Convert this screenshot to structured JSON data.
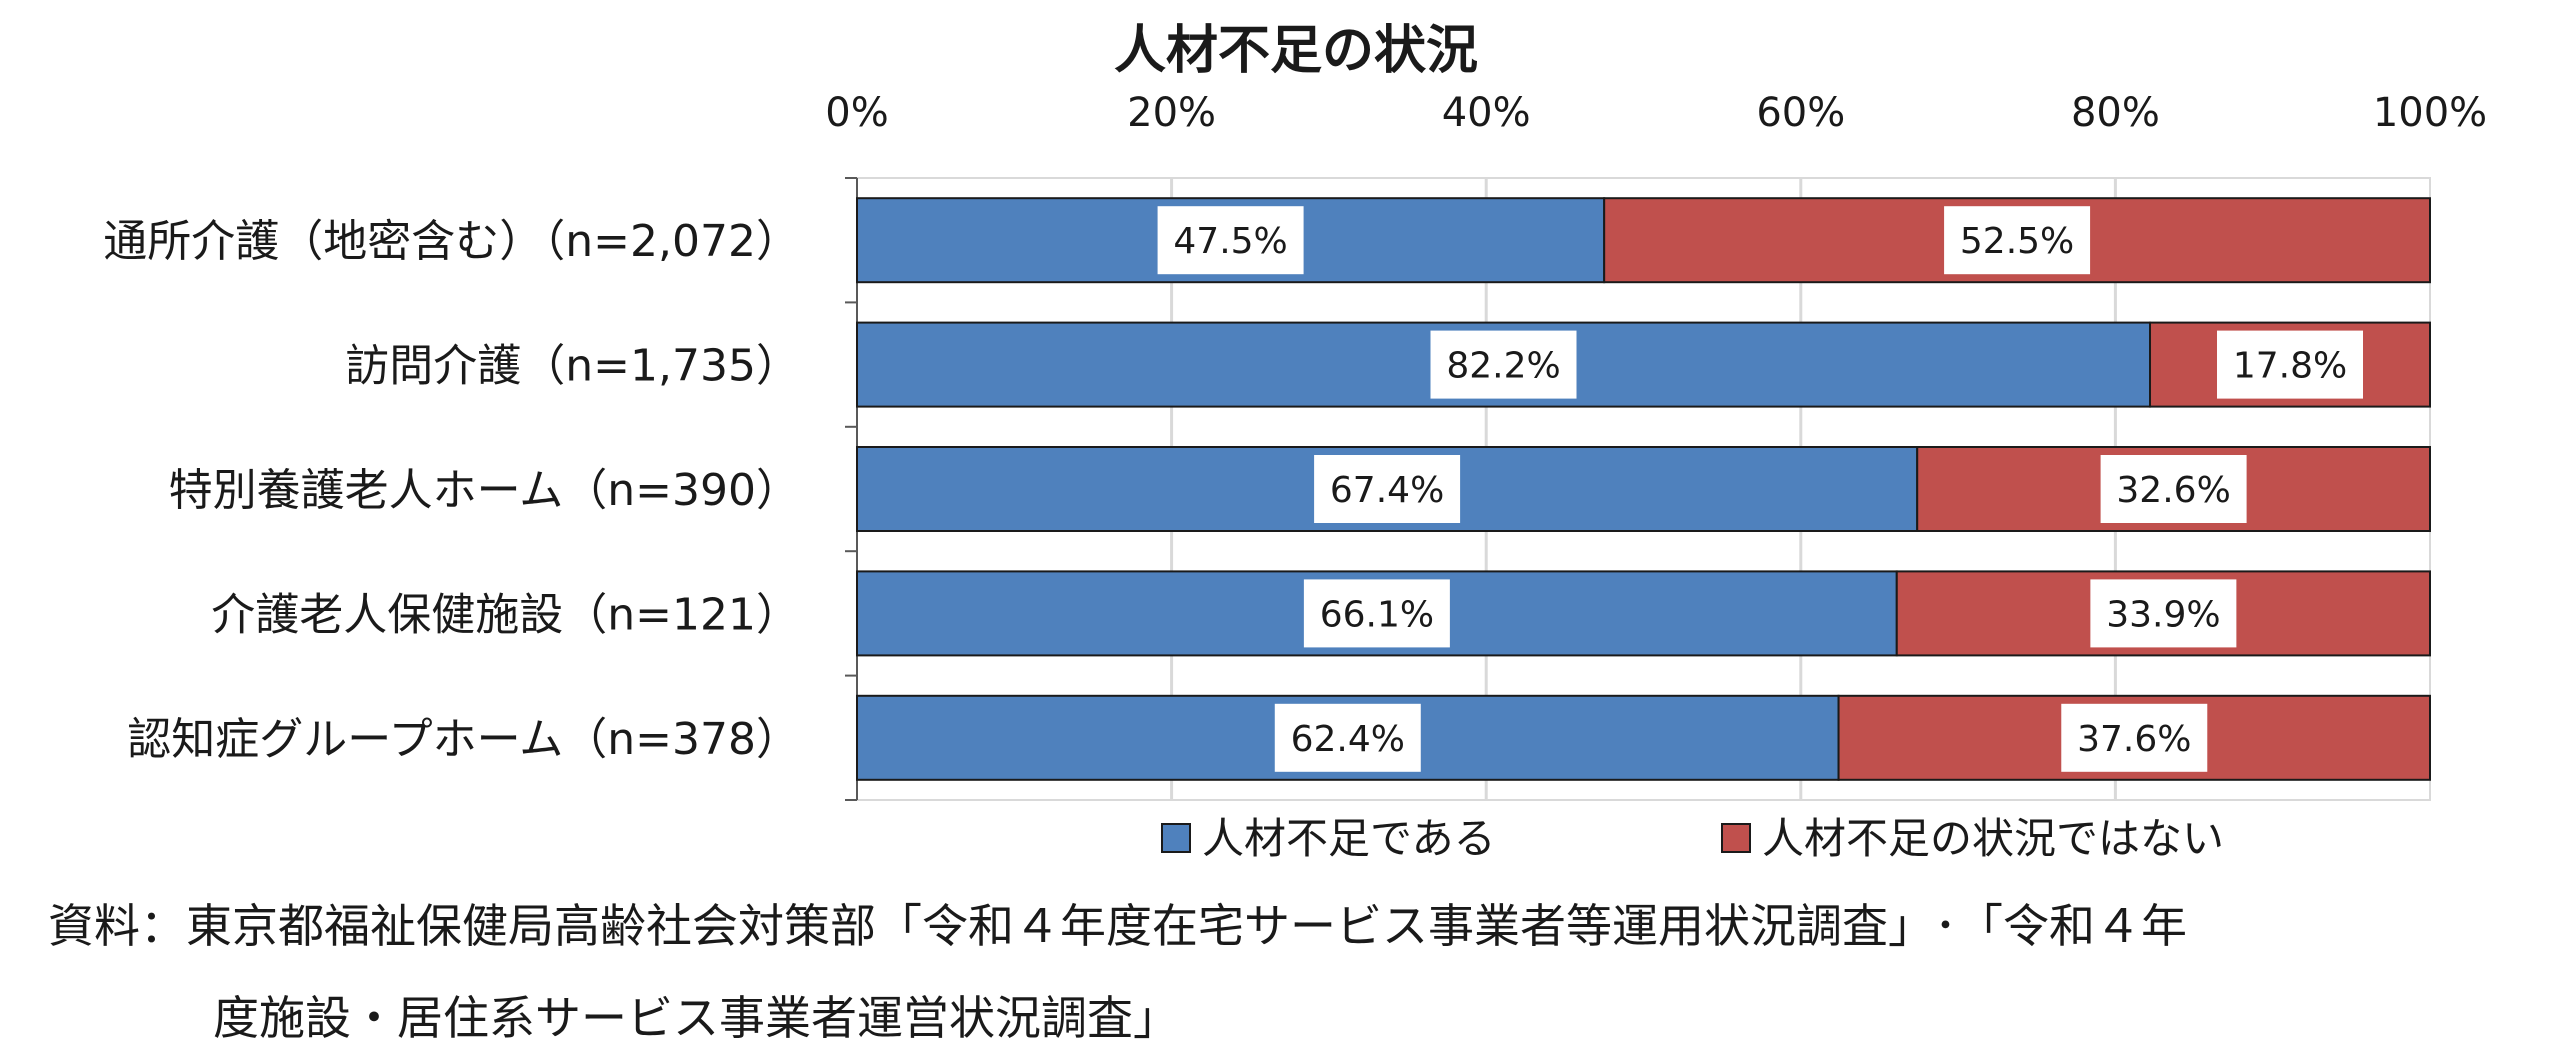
{
  "chart_data": {
    "type": "bar",
    "stacked": true,
    "orientation": "horizontal",
    "title": "人材不足の状況",
    "categories": [
      "通所介護（地密含む）（n=2,072）",
      "訪問介護（n=1,735）",
      "特別養護老人ホーム（n=390）",
      "介護老人保健施設（n=121）",
      "認知症グループホーム（n=378）"
    ],
    "series": [
      {
        "name": "人材不足である",
        "color": "#4f81bd",
        "values": [
          47.5,
          82.2,
          67.4,
          66.1,
          62.4
        ],
        "labels": [
          "47.5%",
          "82.2%",
          "67.4%",
          "66.1%",
          "62.4%"
        ]
      },
      {
        "name": "人材不足の状況ではない",
        "color": "#c0504d",
        "values": [
          52.5,
          17.8,
          32.6,
          33.9,
          37.6
        ],
        "labels": [
          "52.5%",
          "17.8%",
          "32.6%",
          "33.9%",
          "37.6%"
        ]
      }
    ],
    "xlim": [
      0,
      100
    ],
    "xticks": [
      "0%",
      "20%",
      "40%",
      "60%",
      "80%",
      "100%"
    ],
    "x_axis_position": "top",
    "grid": true,
    "legend_position": "bottom"
  },
  "source": {
    "line1": "資料：東京都福祉保健局高齢社会対策部「令和４年度在宅サービス事業者等運用状況調査」･「令和４年",
    "line2": "度施設・居住系サービス事業者運営状況調査」"
  }
}
